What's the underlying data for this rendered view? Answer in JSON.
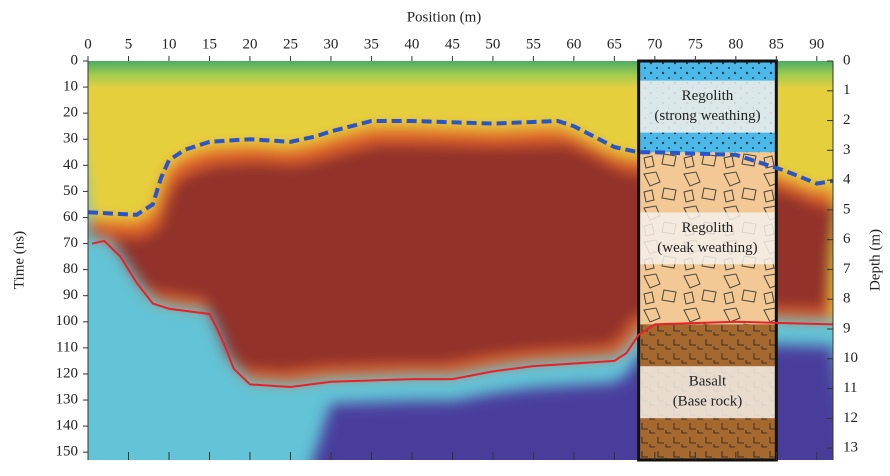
{
  "chart_data": {
    "type": "profile",
    "title": "Position (m)",
    "y_label": "Time (ns)",
    "y2_label": "Depth (m)",
    "xlim": [
      0,
      92
    ],
    "xticks": [
      0,
      5,
      10,
      15,
      20,
      25,
      30,
      35,
      40,
      45,
      50,
      55,
      60,
      65,
      70,
      75,
      80,
      85,
      90
    ],
    "ylim": [
      0,
      153
    ],
    "yticks": [
      0,
      10,
      20,
      30,
      40,
      50,
      60,
      70,
      80,
      90,
      100,
      110,
      120,
      130,
      140,
      150
    ],
    "y2lim": [
      0,
      13.4
    ],
    "y2ticks": [
      0,
      1,
      2,
      3,
      4,
      5,
      6,
      7,
      8,
      9,
      10,
      11,
      12,
      13
    ],
    "series": [
      {
        "color": "#2a55c8",
        "style": "dashed",
        "x": [
          0,
          6,
          8,
          9,
          10,
          12,
          15,
          20,
          25,
          28,
          30,
          35,
          40,
          50,
          58,
          60,
          65,
          68,
          70,
          80,
          86,
          90,
          92
        ],
        "values": [
          58,
          59,
          55,
          45,
          38,
          34,
          31,
          30,
          31,
          29,
          27,
          23,
          23,
          24,
          23,
          25,
          33,
          35,
          35,
          36,
          42,
          47,
          46
        ]
      },
      {
        "color": "#e8202a",
        "style": "solid",
        "x": [
          0.5,
          2,
          4,
          6,
          8,
          10,
          15,
          16,
          17,
          18,
          20,
          25,
          30,
          40,
          45,
          50,
          55,
          60,
          65,
          66.5,
          68,
          70,
          80,
          92
        ],
        "values": [
          70,
          69,
          75,
          85,
          93,
          95,
          97,
          103,
          110,
          118,
          124,
          125,
          123,
          122,
          122,
          119,
          117,
          116,
          115,
          112,
          105,
          101,
          100,
          101
        ]
      }
    ],
    "column": {
      "x": [
        68,
        85
      ],
      "layers": [
        {
          "top": 0,
          "bottom": 35,
          "color": "#4bb8e8",
          "label": [
            "Regolith",
            "(strong weathing)"
          ]
        },
        {
          "top": 35,
          "bottom": 101,
          "color": "#f2c894",
          "label": [
            "Regolith",
            "(weak weathing)"
          ]
        },
        {
          "top": 101,
          "bottom": 153,
          "color": "#a5682e",
          "label": [
            "Basalt",
            "(Base rock)"
          ]
        }
      ]
    }
  }
}
